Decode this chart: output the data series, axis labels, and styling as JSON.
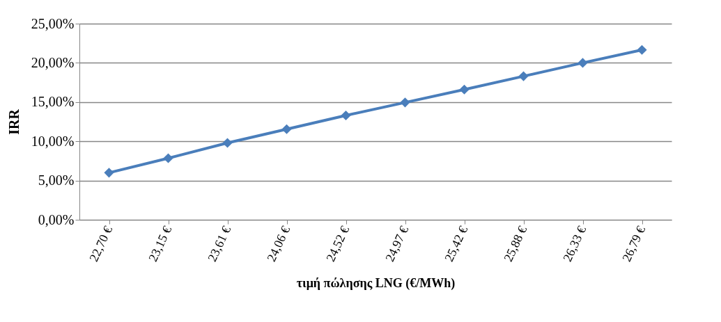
{
  "chart_data": {
    "type": "line",
    "xlabel": "τιμή πώλησης LNG (€/MWh)",
    "ylabel": "IRR",
    "categories": [
      "22,70 €",
      "23,15 €",
      "23,61 €",
      "24,06 €",
      "24,52 €",
      "24,97 €",
      "25,42 €",
      "25,88 €",
      "26,33 €",
      "26,79 €"
    ],
    "series": [
      {
        "color": "#4a7ebb",
        "values": [
          6.0,
          7.85,
          9.8,
          11.55,
          13.3,
          14.95,
          16.6,
          18.3,
          20.0,
          21.65
        ]
      }
    ],
    "ylim": [
      0,
      25
    ],
    "yticks": [
      {
        "value": 0,
        "label": "0,00%"
      },
      {
        "value": 5,
        "label": "5,00%"
      },
      {
        "value": 10,
        "label": "10,00%"
      },
      {
        "value": 15,
        "label": "15,00%"
      },
      {
        "value": 20,
        "label": "20,00%"
      },
      {
        "value": 25,
        "label": "25,00%"
      }
    ],
    "grid": "y",
    "legend": false,
    "marker": "diamond",
    "line_style": "solid"
  }
}
